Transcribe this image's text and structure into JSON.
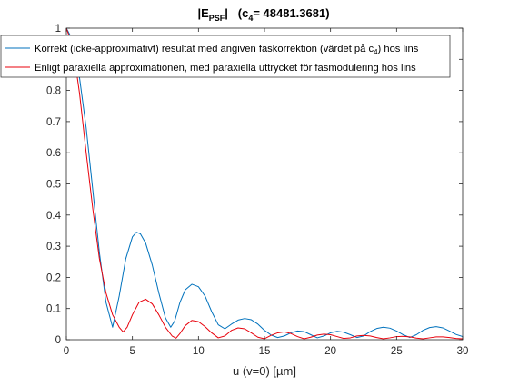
{
  "chart_data": {
    "type": "line",
    "title": {
      "main": "|E",
      "main_sub": "PSF",
      "rest": "|   (c",
      "rest_sub": "4",
      "tail": "= 48481.3681)"
    },
    "xlabel": "u (v=0) [µm]",
    "ylabel": "",
    "xlim": [
      0,
      30
    ],
    "ylim": [
      0,
      1
    ],
    "xticks": [
      "0",
      "5",
      "10",
      "15",
      "20",
      "25",
      "30"
    ],
    "yticks": [
      "0",
      "0.1",
      "0.2",
      "0.3",
      "0.4",
      "0.5",
      "0.6",
      "0.7",
      "0.8",
      "0.9",
      "1"
    ],
    "grid": false,
    "legend_position": "top-right",
    "series": [
      {
        "name": "Korrekt (icke-approximativt) resultat med angiven faskorrektion (värdet på c",
        "name_sub": "4",
        "name_tail": ") hos lins",
        "color": "#0072BD",
        "points": [
          [
            0,
            1.0
          ],
          [
            0.5,
            0.96
          ],
          [
            1.0,
            0.84
          ],
          [
            1.5,
            0.68
          ],
          [
            2.0,
            0.48
          ],
          [
            2.5,
            0.28
          ],
          [
            3.0,
            0.12
          ],
          [
            3.5,
            0.04
          ],
          [
            4.0,
            0.14
          ],
          [
            4.5,
            0.26
          ],
          [
            5.0,
            0.33
          ],
          [
            5.3,
            0.345
          ],
          [
            5.6,
            0.34
          ],
          [
            6.0,
            0.31
          ],
          [
            6.5,
            0.24
          ],
          [
            7.0,
            0.15
          ],
          [
            7.5,
            0.07
          ],
          [
            7.9,
            0.04
          ],
          [
            8.2,
            0.06
          ],
          [
            8.6,
            0.12
          ],
          [
            9.0,
            0.16
          ],
          [
            9.5,
            0.178
          ],
          [
            10.0,
            0.17
          ],
          [
            10.5,
            0.14
          ],
          [
            11.0,
            0.09
          ],
          [
            11.5,
            0.048
          ],
          [
            12.0,
            0.035
          ],
          [
            12.5,
            0.05
          ],
          [
            13.0,
            0.063
          ],
          [
            13.5,
            0.068
          ],
          [
            14.0,
            0.064
          ],
          [
            14.5,
            0.05
          ],
          [
            15.0,
            0.03
          ],
          [
            15.5,
            0.015
          ],
          [
            16.0,
            0.007
          ],
          [
            16.5,
            0.012
          ],
          [
            17.0,
            0.022
          ],
          [
            17.5,
            0.028
          ],
          [
            18.0,
            0.026
          ],
          [
            18.5,
            0.016
          ],
          [
            19.0,
            0.006
          ],
          [
            19.5,
            0.012
          ],
          [
            20.0,
            0.022
          ],
          [
            20.5,
            0.027
          ],
          [
            21.0,
            0.024
          ],
          [
            21.5,
            0.016
          ],
          [
            22.0,
            0.007
          ],
          [
            22.5,
            0.012
          ],
          [
            23.0,
            0.026
          ],
          [
            23.5,
            0.036
          ],
          [
            24.0,
            0.04
          ],
          [
            24.5,
            0.037
          ],
          [
            25.0,
            0.028
          ],
          [
            25.5,
            0.016
          ],
          [
            26.0,
            0.007
          ],
          [
            26.5,
            0.016
          ],
          [
            27.0,
            0.03
          ],
          [
            27.5,
            0.039
          ],
          [
            28.0,
            0.042
          ],
          [
            28.5,
            0.038
          ],
          [
            29.0,
            0.028
          ],
          [
            29.5,
            0.017
          ],
          [
            30.0,
            0.01
          ]
        ]
      },
      {
        "name": "Enligt paraxiella approximationen, med paraxiella uttrycket för fasmodulering hos lins",
        "color": "#E8000B",
        "points": [
          [
            0,
            1.0
          ],
          [
            0.5,
            0.94
          ],
          [
            1.0,
            0.79
          ],
          [
            1.5,
            0.6
          ],
          [
            2.0,
            0.42
          ],
          [
            2.5,
            0.26
          ],
          [
            3.0,
            0.15
          ],
          [
            3.5,
            0.08
          ],
          [
            4.0,
            0.04
          ],
          [
            4.3,
            0.025
          ],
          [
            4.6,
            0.04
          ],
          [
            5.0,
            0.08
          ],
          [
            5.5,
            0.12
          ],
          [
            6.0,
            0.13
          ],
          [
            6.5,
            0.115
          ],
          [
            7.0,
            0.08
          ],
          [
            7.5,
            0.04
          ],
          [
            8.0,
            0.012
          ],
          [
            8.3,
            0.005
          ],
          [
            8.6,
            0.02
          ],
          [
            9.0,
            0.045
          ],
          [
            9.5,
            0.062
          ],
          [
            10.0,
            0.058
          ],
          [
            10.5,
            0.042
          ],
          [
            11.0,
            0.022
          ],
          [
            11.5,
            0.006
          ],
          [
            12.0,
            0.012
          ],
          [
            12.5,
            0.03
          ],
          [
            13.0,
            0.038
          ],
          [
            13.5,
            0.035
          ],
          [
            14.0,
            0.022
          ],
          [
            14.5,
            0.008
          ],
          [
            15.0,
            0.003
          ],
          [
            15.5,
            0.014
          ],
          [
            16.0,
            0.022
          ],
          [
            16.5,
            0.025
          ],
          [
            17.0,
            0.02
          ],
          [
            17.5,
            0.01
          ],
          [
            18.0,
            0.003
          ],
          [
            18.5,
            0.008
          ],
          [
            19.0,
            0.015
          ],
          [
            19.5,
            0.018
          ],
          [
            20.0,
            0.016
          ],
          [
            20.5,
            0.01
          ],
          [
            21.0,
            0.004
          ],
          [
            21.5,
            0.006
          ],
          [
            22.0,
            0.012
          ],
          [
            22.5,
            0.014
          ],
          [
            23.0,
            0.012
          ],
          [
            23.5,
            0.007
          ],
          [
            24.0,
            0.003
          ],
          [
            24.5,
            0.006
          ],
          [
            25.0,
            0.01
          ],
          [
            25.5,
            0.011
          ],
          [
            26.0,
            0.009
          ],
          [
            26.5,
            0.005
          ],
          [
            27.0,
            0.003
          ],
          [
            27.5,
            0.006
          ],
          [
            28.0,
            0.009
          ],
          [
            28.5,
            0.009
          ],
          [
            29.0,
            0.007
          ],
          [
            29.5,
            0.004
          ],
          [
            30.0,
            0.003
          ]
        ]
      }
    ]
  }
}
